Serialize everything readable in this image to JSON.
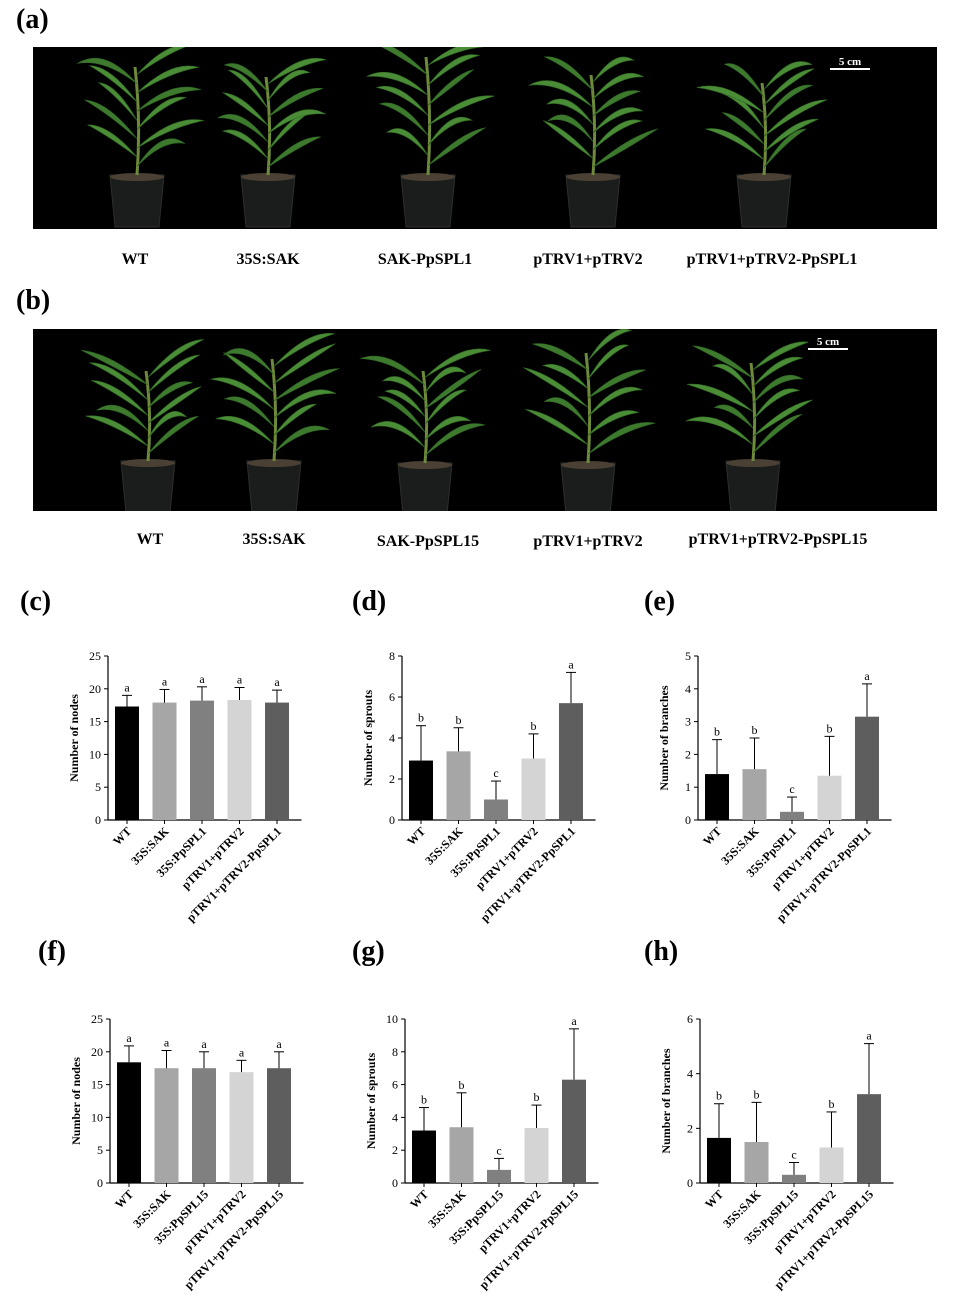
{
  "panels": {
    "a": {
      "letter": "(a)",
      "scale_label": "5 cm",
      "plant_labels": [
        "WT",
        "35S:SAK",
        "SAK-PpSPL1",
        "pTRV1+pTRV2",
        "pTRV1+pTRV2-PpSPL1"
      ]
    },
    "b": {
      "letter": "(b)",
      "scale_label": "5 cm",
      "plant_labels": [
        "WT",
        "35S:SAK",
        "SAK-PpSPL15",
        "pTRV1+pTRV2",
        "pTRV1+pTRV2-PpSPL15"
      ]
    }
  },
  "bar_colors": [
    "#000000",
    "#a6a6a6",
    "#808080",
    "#d4d4d4",
    "#5e5e5e"
  ],
  "chart_data": [
    {
      "letter": "(c)",
      "type": "bar",
      "ylabel": "Number of nodes",
      "ylim": [
        0,
        25
      ],
      "yticks": [
        0,
        5,
        10,
        15,
        20,
        25
      ],
      "categories": [
        "WT",
        "35S:SAK",
        "35S:PpSPL1",
        "pTRV1+pTRV2",
        "pTRV1+pTRV2-PpSPL1"
      ],
      "values": [
        17.3,
        17.9,
        18.2,
        18.3,
        17.9
      ],
      "errors": [
        1.7,
        2.0,
        2.1,
        1.9,
        1.9
      ],
      "letters": [
        "a",
        "a",
        "a",
        "a",
        "a"
      ]
    },
    {
      "letter": "(d)",
      "type": "bar",
      "ylabel": "Number of sprouts",
      "ylim": [
        0,
        8
      ],
      "yticks": [
        0,
        2,
        4,
        6,
        8
      ],
      "categories": [
        "WT",
        "35S:SAK",
        "35S:PpSPL1",
        "pTRV1+pTRV2",
        "pTRV1+pTRV2-PpSPL1"
      ],
      "values": [
        2.9,
        3.35,
        1.0,
        3.0,
        5.7
      ],
      "errors": [
        1.7,
        1.15,
        0.9,
        1.2,
        1.5
      ],
      "letters": [
        "b",
        "b",
        "c",
        "b",
        "a"
      ]
    },
    {
      "letter": "(e)",
      "type": "bar",
      "ylabel": "Number of branches",
      "ylim": [
        0,
        5
      ],
      "yticks": [
        0,
        1,
        2,
        3,
        4,
        5
      ],
      "categories": [
        "WT",
        "35S:SAK",
        "35S:PpSPL1",
        "pTRV1+pTRV2",
        "pTRV1+pTRV2-PpSPL1"
      ],
      "values": [
        1.4,
        1.55,
        0.25,
        1.35,
        3.15
      ],
      "errors": [
        1.05,
        0.95,
        0.45,
        1.2,
        1.0
      ],
      "letters": [
        "b",
        "b",
        "c",
        "b",
        "a"
      ]
    },
    {
      "letter": "(f)",
      "type": "bar",
      "ylabel": "Number of nodes",
      "ylim": [
        0,
        25
      ],
      "yticks": [
        0,
        5,
        10,
        15,
        20,
        25
      ],
      "categories": [
        "WT",
        "35S:SAK",
        "35S:PpSPL15",
        "pTRV1+pTRV2",
        "pTRV1+pTRV2-PpSPL15"
      ],
      "values": [
        18.4,
        17.5,
        17.5,
        16.9,
        17.5
      ],
      "errors": [
        2.5,
        2.7,
        2.5,
        1.8,
        2.5
      ],
      "letters": [
        "a",
        "a",
        "a",
        "a",
        "a"
      ]
    },
    {
      "letter": "(g)",
      "type": "bar",
      "ylabel": "Number of sprouts",
      "ylim": [
        0,
        10
      ],
      "yticks": [
        0,
        2,
        4,
        6,
        8,
        10
      ],
      "categories": [
        "WT",
        "35S:SAK",
        "35S:PpSPL15",
        "pTRV1+pTRV2",
        "pTRV1+pTRV2-PpSPL15"
      ],
      "values": [
        3.2,
        3.4,
        0.8,
        3.35,
        6.3
      ],
      "errors": [
        1.4,
        2.1,
        0.7,
        1.4,
        3.1
      ],
      "letters": [
        "b",
        "b",
        "c",
        "b",
        "a"
      ]
    },
    {
      "letter": "(h)",
      "type": "bar",
      "ylabel": "Number of branches",
      "ylim": [
        0,
        6
      ],
      "yticks": [
        0,
        2,
        4,
        6
      ],
      "categories": [
        "WT",
        "35S:SAK",
        "35S:PpSPL15",
        "pTRV1+pTRV2",
        "pTRV1+pTRV2-PpSPL15"
      ],
      "values": [
        1.65,
        1.5,
        0.3,
        1.3,
        3.25
      ],
      "errors": [
        1.25,
        1.45,
        0.45,
        1.3,
        1.85
      ],
      "letters": [
        "b",
        "b",
        "c",
        "b",
        "a"
      ]
    }
  ]
}
